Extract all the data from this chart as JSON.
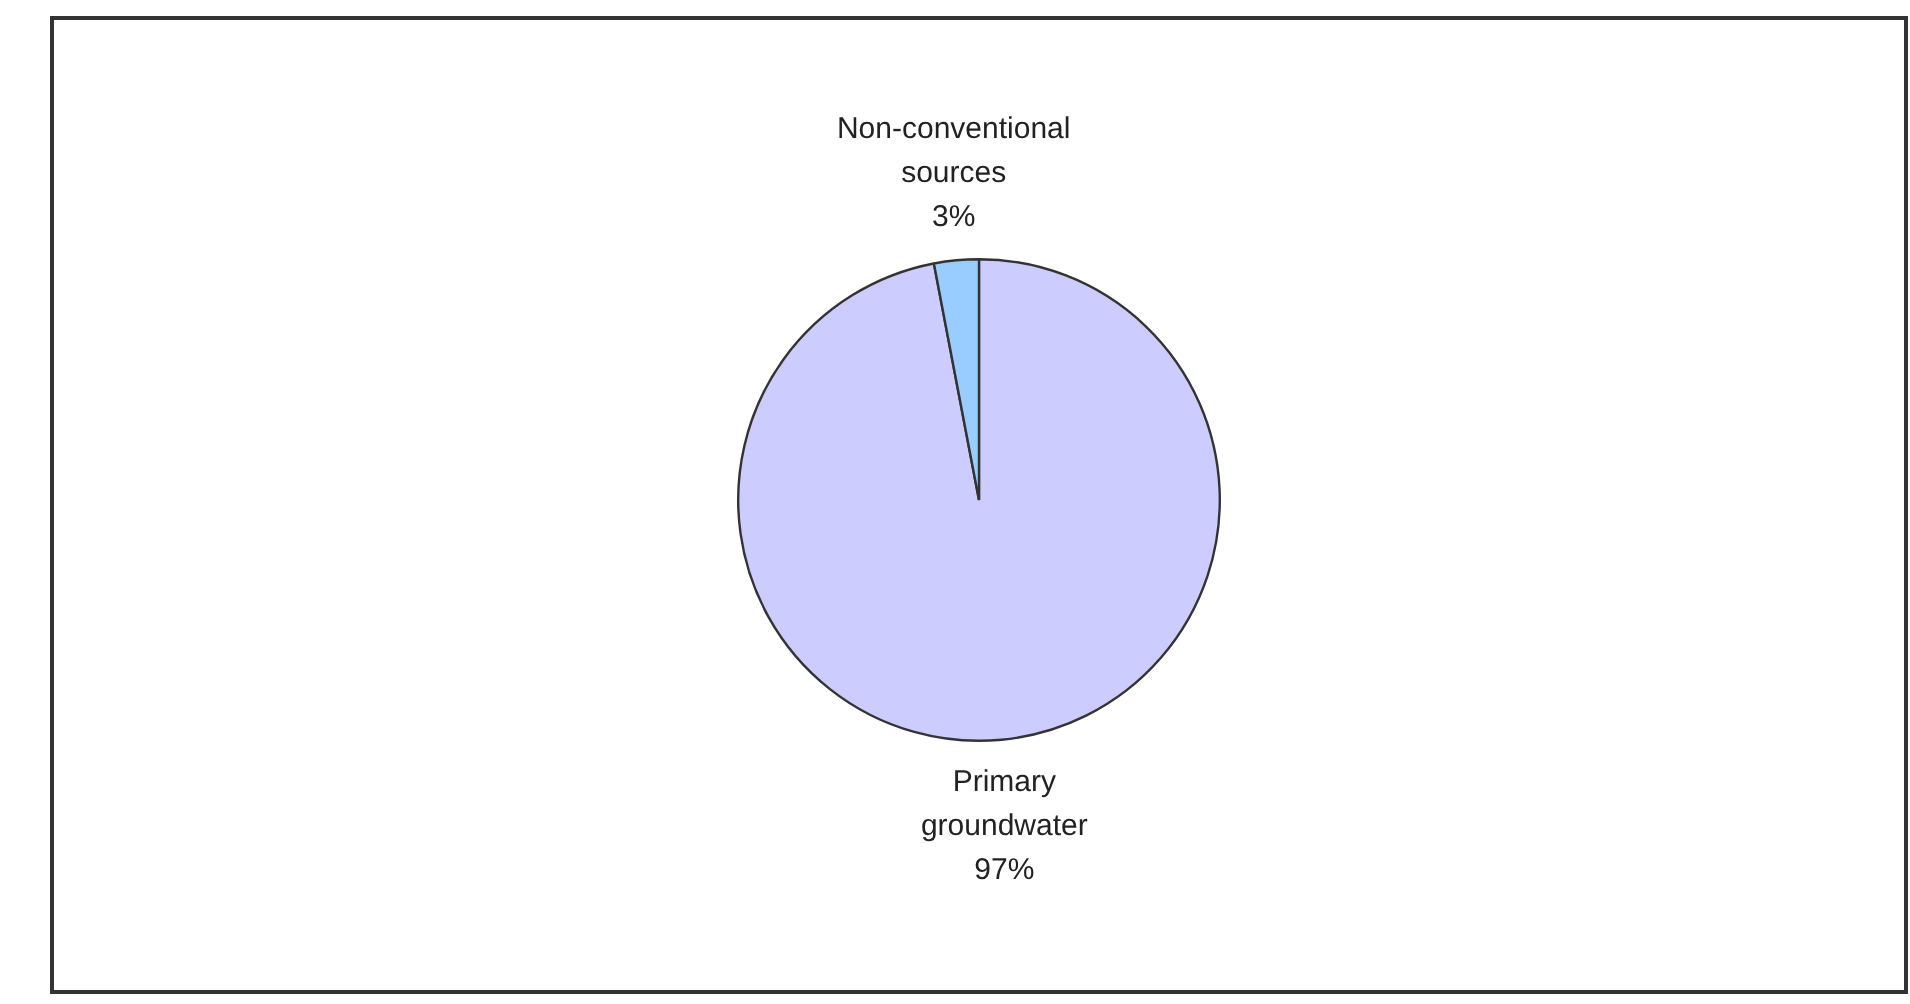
{
  "chart_data": {
    "type": "pie",
    "categories": [
      "Primary groundwater",
      "Non-conventional sources"
    ],
    "values": [
      97,
      3
    ],
    "colors": [
      "#ccccff",
      "#99ccff"
    ],
    "value_labels": [
      "97%",
      "3%"
    ],
    "legend": false
  }
}
